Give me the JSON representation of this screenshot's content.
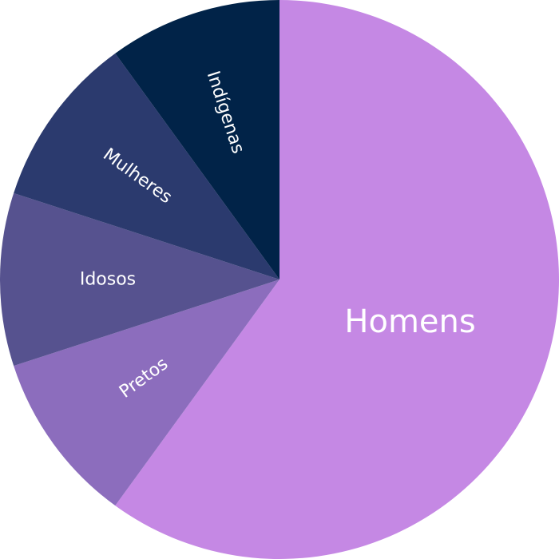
{
  "chart_data": {
    "type": "pie",
    "categories": [
      "Homens",
      "Pretos",
      "Idosos",
      "Mulheres",
      "Indígenas"
    ],
    "values": [
      60,
      10,
      10,
      10,
      10
    ],
    "unit": "%",
    "colors": [
      "#c588e4",
      "#8c6dbd",
      "#56528f",
      "#2b3a6e",
      "#012348"
    ],
    "start_angle_deg": 0,
    "direction": "clockwise",
    "legend": "none"
  }
}
